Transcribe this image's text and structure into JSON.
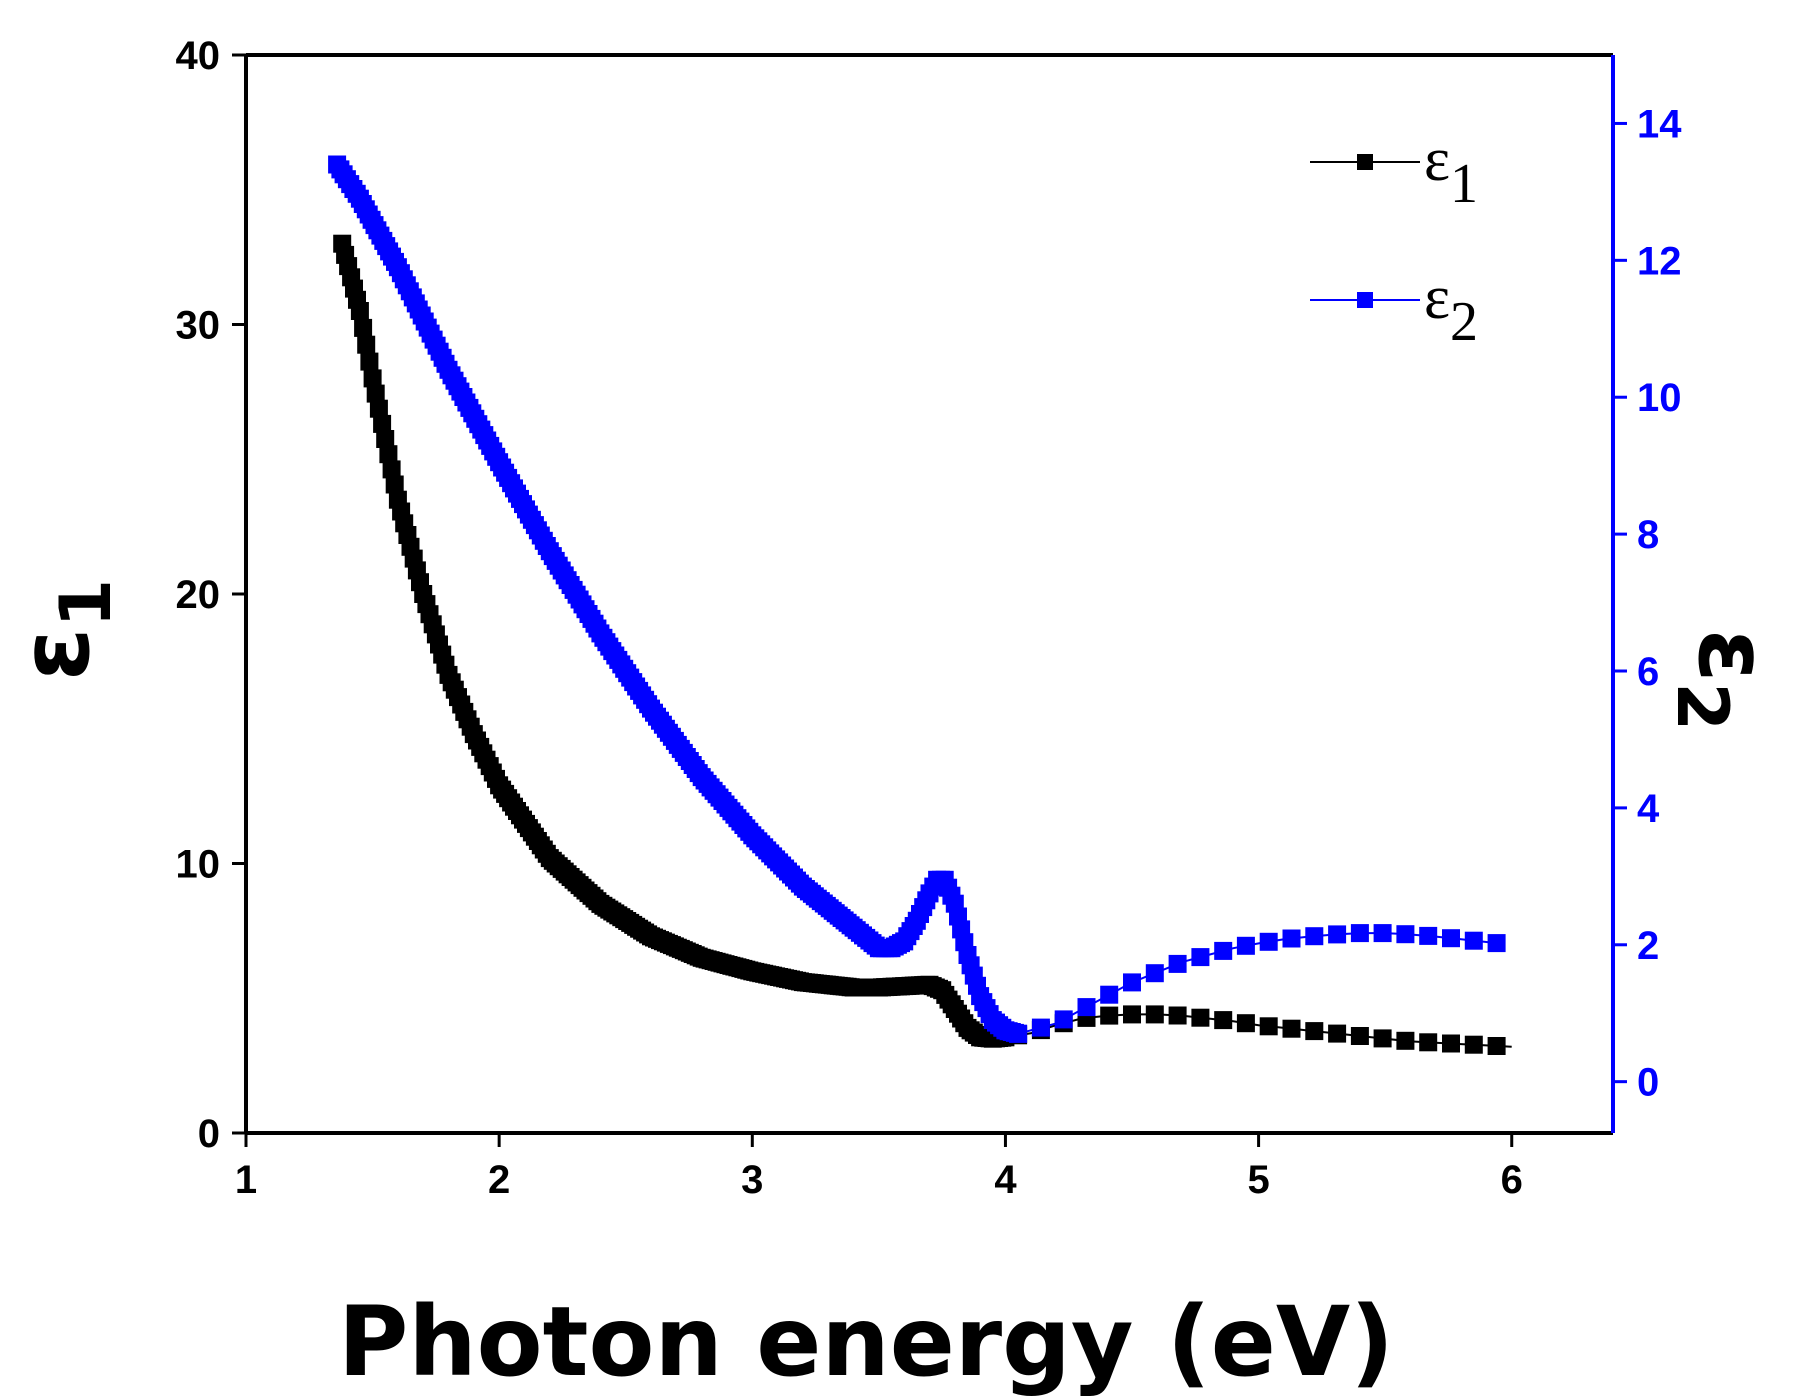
{
  "chart_data": {
    "type": "scatter",
    "title": "",
    "xlabel": "Photon energy (eV)",
    "ylabel_left": "ε1",
    "ylabel_right": "ε2",
    "xlim": [
      1,
      6.4
    ],
    "ylim_left": [
      0,
      40
    ],
    "ylim_right": [
      -0.75,
      15
    ],
    "x_ticks": [
      "1",
      "2",
      "3",
      "4",
      "5",
      "6"
    ],
    "y_left_ticks": [
      "0",
      "10",
      "20",
      "30",
      "40"
    ],
    "y_right_ticks": [
      "0",
      "2",
      "4",
      "6",
      "8",
      "10",
      "12",
      "14"
    ],
    "colors": {
      "eps1": "#000000",
      "eps2": "#0000ff",
      "axis_left": "#000000",
      "axis_right": "#0000ff"
    },
    "legend": {
      "position": "top-right",
      "entries": [
        {
          "label": "ε",
          "sub": "1",
          "series": "eps1"
        },
        {
          "label": "ε",
          "sub": "2",
          "series": "eps2"
        }
      ]
    },
    "series": [
      {
        "name": "ε1",
        "axis": "left",
        "points": [
          [
            1.38,
            33.0
          ],
          [
            1.45,
            30.5
          ],
          [
            1.5,
            28.0
          ],
          [
            1.6,
            23.5
          ],
          [
            1.7,
            20.0
          ],
          [
            1.8,
            17.0
          ],
          [
            1.9,
            14.8
          ],
          [
            2.0,
            12.9
          ],
          [
            2.2,
            10.2
          ],
          [
            2.4,
            8.5
          ],
          [
            2.6,
            7.3
          ],
          [
            2.8,
            6.5
          ],
          [
            3.0,
            6.0
          ],
          [
            3.2,
            5.6
          ],
          [
            3.4,
            5.4
          ],
          [
            3.5,
            5.4
          ],
          [
            3.6,
            5.45
          ],
          [
            3.7,
            5.5
          ],
          [
            3.75,
            5.3
          ],
          [
            3.8,
            4.6
          ],
          [
            3.85,
            3.9
          ],
          [
            3.9,
            3.55
          ],
          [
            3.95,
            3.5
          ],
          [
            4.0,
            3.55
          ],
          [
            4.1,
            3.7
          ],
          [
            4.2,
            4.0
          ],
          [
            4.3,
            4.25
          ],
          [
            4.4,
            4.35
          ],
          [
            4.5,
            4.4
          ],
          [
            4.6,
            4.4
          ],
          [
            4.7,
            4.35
          ],
          [
            4.8,
            4.25
          ],
          [
            4.9,
            4.15
          ],
          [
            5.0,
            4.0
          ],
          [
            5.1,
            3.9
          ],
          [
            5.2,
            3.8
          ],
          [
            5.3,
            3.7
          ],
          [
            5.4,
            3.6
          ],
          [
            5.5,
            3.5
          ],
          [
            5.6,
            3.4
          ],
          [
            5.7,
            3.35
          ],
          [
            5.8,
            3.3
          ],
          [
            5.9,
            3.25
          ],
          [
            6.0,
            3.2
          ]
        ]
      },
      {
        "name": "ε2",
        "axis": "right",
        "points": [
          [
            1.36,
            13.4
          ],
          [
            1.45,
            12.9
          ],
          [
            1.6,
            11.9
          ],
          [
            1.8,
            10.4
          ],
          [
            2.0,
            9.05
          ],
          [
            2.2,
            7.75
          ],
          [
            2.4,
            6.55
          ],
          [
            2.6,
            5.45
          ],
          [
            2.8,
            4.45
          ],
          [
            3.0,
            3.6
          ],
          [
            3.2,
            2.85
          ],
          [
            3.4,
            2.25
          ],
          [
            3.5,
            1.95
          ],
          [
            3.55,
            1.95
          ],
          [
            3.6,
            2.05
          ],
          [
            3.65,
            2.35
          ],
          [
            3.7,
            2.75
          ],
          [
            3.73,
            2.95
          ],
          [
            3.76,
            2.95
          ],
          [
            3.8,
            2.6
          ],
          [
            3.85,
            1.85
          ],
          [
            3.9,
            1.25
          ],
          [
            3.95,
            0.9
          ],
          [
            4.0,
            0.75
          ],
          [
            4.05,
            0.7
          ],
          [
            4.1,
            0.75
          ],
          [
            4.2,
            0.85
          ],
          [
            4.3,
            1.05
          ],
          [
            4.4,
            1.25
          ],
          [
            4.5,
            1.45
          ],
          [
            4.6,
            1.6
          ],
          [
            4.7,
            1.75
          ],
          [
            4.8,
            1.85
          ],
          [
            4.9,
            1.95
          ],
          [
            5.0,
            2.02
          ],
          [
            5.1,
            2.08
          ],
          [
            5.2,
            2.12
          ],
          [
            5.3,
            2.15
          ],
          [
            5.4,
            2.17
          ],
          [
            5.5,
            2.17
          ],
          [
            5.6,
            2.15
          ],
          [
            5.7,
            2.12
          ],
          [
            5.8,
            2.08
          ],
          [
            5.9,
            2.04
          ],
          [
            5.95,
            2.02
          ]
        ]
      }
    ]
  }
}
